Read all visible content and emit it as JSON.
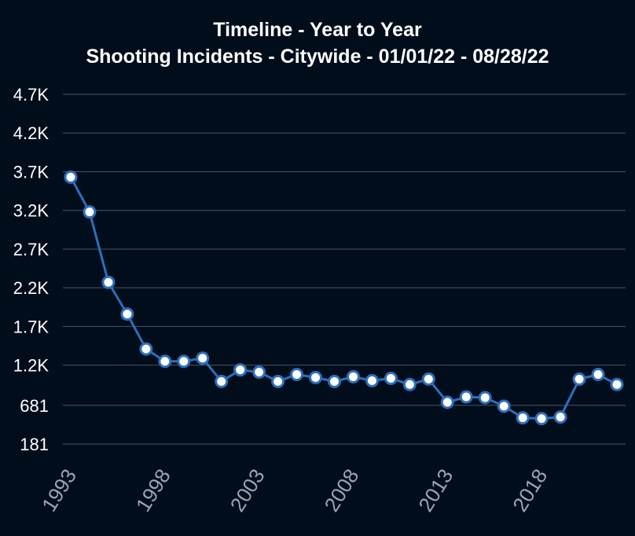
{
  "chart_data": {
    "type": "line",
    "title": "Timeline - Year to Year",
    "subtitle": "Shooting Incidents - Citywide - 01/01/22 - 08/28/22",
    "xlabel": "",
    "ylabel": "",
    "x": [
      1993,
      1994,
      1995,
      1996,
      1997,
      1998,
      1999,
      2000,
      2001,
      2002,
      2003,
      2004,
      2005,
      2006,
      2007,
      2008,
      2009,
      2010,
      2011,
      2012,
      2013,
      2014,
      2015,
      2016,
      2017,
      2018,
      2019,
      2020,
      2021,
      2022
    ],
    "series": [
      {
        "name": "",
        "values": [
          3630,
          3180,
          2270,
          1860,
          1410,
          1250,
          1250,
          1290,
          990,
          1140,
          1110,
          990,
          1080,
          1040,
          990,
          1050,
          1000,
          1030,
          950,
          1020,
          720,
          790,
          780,
          670,
          520,
          510,
          530,
          1020,
          1080,
          950
        ]
      }
    ],
    "yticks": [
      181,
      681,
      1200,
      1700,
      2200,
      2700,
      3200,
      3700,
      4200,
      4700
    ],
    "ytick_labels": [
      "181",
      "681",
      "1.2K",
      "1.7K",
      "2.2K",
      "2.7K",
      "3.2K",
      "3.7K",
      "4.2K",
      "4.7K"
    ],
    "xticks": [
      1993,
      1998,
      2003,
      2008,
      2013,
      2018
    ],
    "xtick_labels": [
      "1993",
      "1998",
      "2003",
      "2008",
      "2013",
      "2018"
    ],
    "ylim": [
      181,
      4700
    ],
    "xlim": [
      1993,
      2022
    ],
    "grid": true,
    "legend": "none",
    "colors": {
      "line": "#2c6fbb",
      "point_fill": "#ffffff",
      "grid": "#4b5264",
      "background": "#020d1c"
    }
  }
}
